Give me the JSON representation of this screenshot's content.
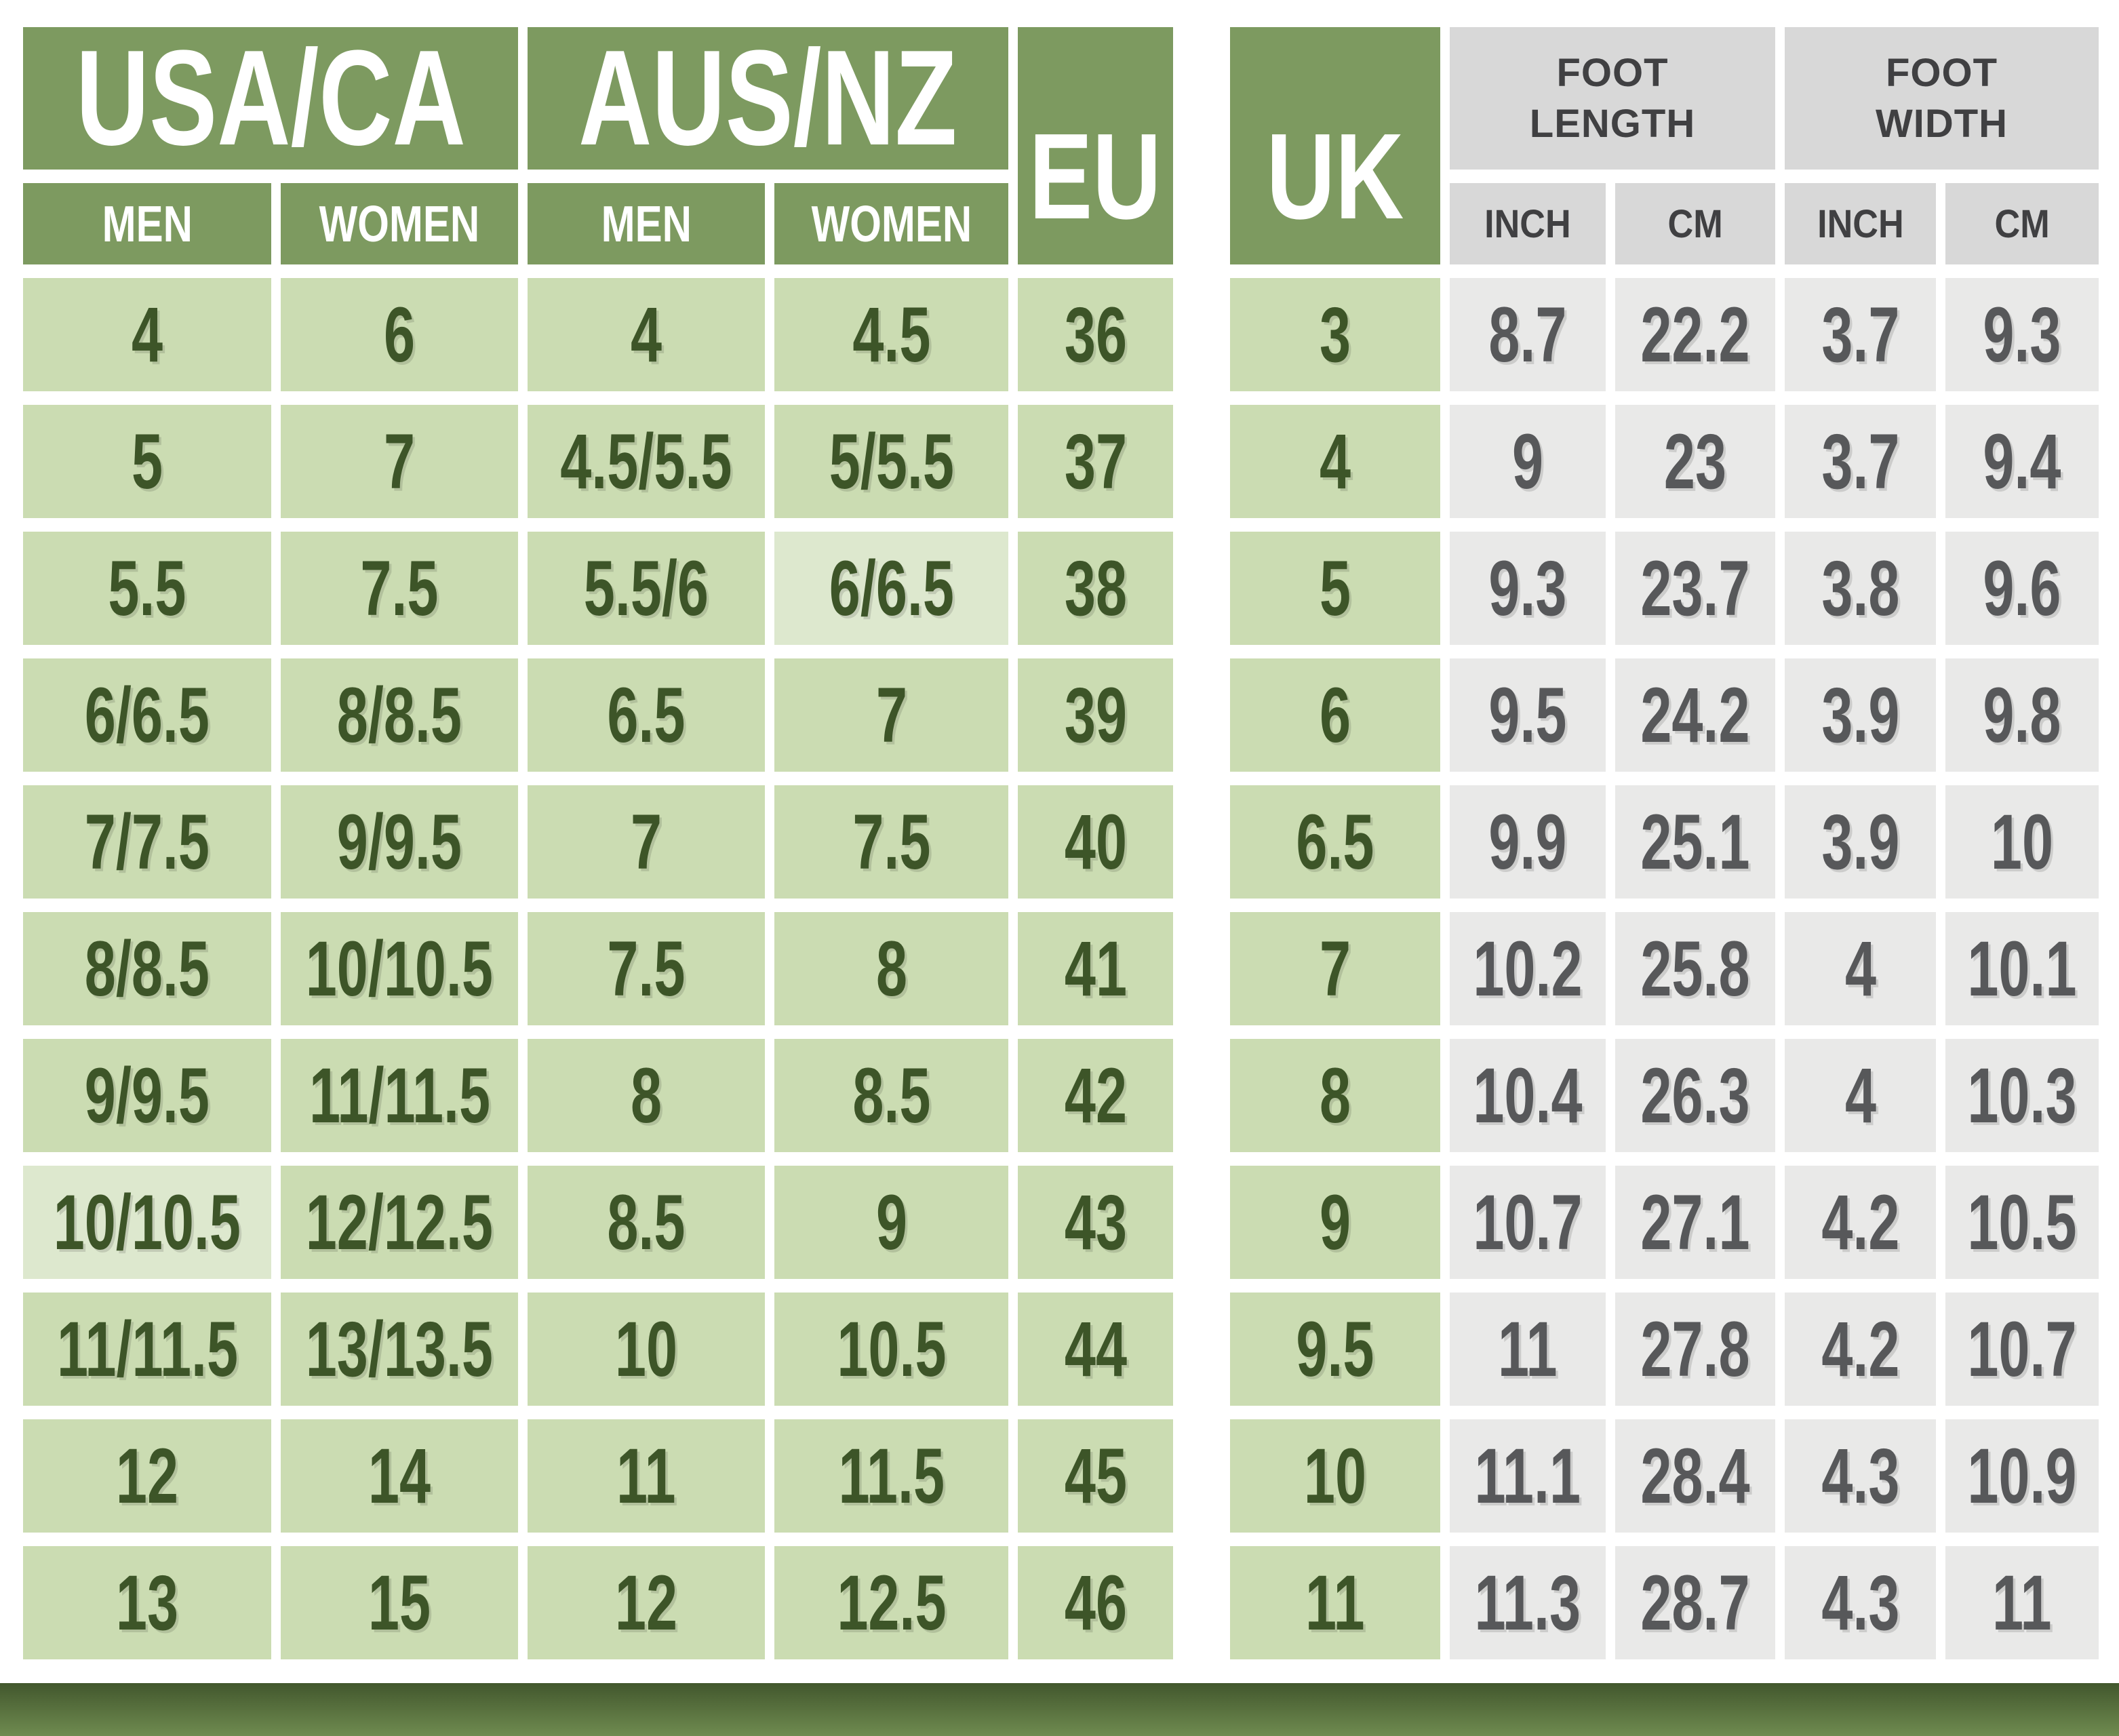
{
  "header": {
    "usa_ca": "USA/CA",
    "aus_nz": "AUS/NZ",
    "eu": "EU",
    "uk": "UK",
    "foot_length_line1": "FOOT",
    "foot_length_line2": "LENGTH",
    "foot_width_line1": "FOOT",
    "foot_width_line2": "WIDTH",
    "shoe_subheaders": [
      "MEN",
      "WOMEN",
      "MEN",
      "WOMEN"
    ],
    "measure_subheaders": [
      "INCH",
      "CM",
      "INCH",
      "CM"
    ]
  },
  "columns": [
    "USA/CA MEN",
    "USA/CA WOMEN",
    "AUS/NZ MEN",
    "AUS/NZ WOMEN",
    "EU",
    "UK",
    "FOOT LENGTH INCH",
    "FOOT LENGTH CM",
    "FOOT WIDTH INCH",
    "FOOT WIDTH CM"
  ],
  "rows": [
    [
      "4",
      "6",
      "4",
      "4.5",
      "36",
      "3",
      "8.7",
      "22.2",
      "3.7",
      "9.3"
    ],
    [
      "5",
      "7",
      "4.5/5.5",
      "5/5.5",
      "37",
      "4",
      "9",
      "23",
      "3.7",
      "9.4"
    ],
    [
      "5.5",
      "7.5",
      "5.5/6",
      "6/6.5",
      "38",
      "5",
      "9.3",
      "23.7",
      "3.8",
      "9.6"
    ],
    [
      "6/6.5",
      "8/8.5",
      "6.5",
      "7",
      "39",
      "6",
      "9.5",
      "24.2",
      "3.9",
      "9.8"
    ],
    [
      "7/7.5",
      "9/9.5",
      "7",
      "7.5",
      "40",
      "6.5",
      "9.9",
      "25.1",
      "3.9",
      "10"
    ],
    [
      "8/8.5",
      "10/10.5",
      "7.5",
      "8",
      "41",
      "7",
      "10.2",
      "25.8",
      "4",
      "10.1"
    ],
    [
      "9/9.5",
      "11/11.5",
      "8",
      "8.5",
      "42",
      "8",
      "10.4",
      "26.3",
      "4",
      "10.3"
    ],
    [
      "10/10.5",
      "12/12.5",
      "8.5",
      "9",
      "43",
      "9",
      "10.7",
      "27.1",
      "4.2",
      "10.5"
    ],
    [
      "11/11.5",
      "13/13.5",
      "10",
      "10.5",
      "44",
      "9.5",
      "11",
      "27.8",
      "4.2",
      "10.7"
    ],
    [
      "12",
      "14",
      "11",
      "11.5",
      "45",
      "10",
      "11.1",
      "28.4",
      "4.3",
      "10.9"
    ],
    [
      "13",
      "15",
      "12",
      "12.5",
      "46",
      "11",
      "11.3",
      "28.7",
      "4.3",
      "11"
    ]
  ],
  "highlight_cells": [
    [
      2,
      3
    ],
    [
      7,
      0
    ]
  ],
  "colors": {
    "header_green": "#7d9a60",
    "cell_green": "#cbdcb2",
    "cell_green_highlight": "#dde8ce",
    "header_gray": "#d8d8d8",
    "cell_gray": "#e9e9e8",
    "text_green": "#3d5528",
    "text_gray": "#57585a",
    "bar_gradient_top": "#42572d",
    "bar_gradient_bottom": "#6f8b50"
  }
}
